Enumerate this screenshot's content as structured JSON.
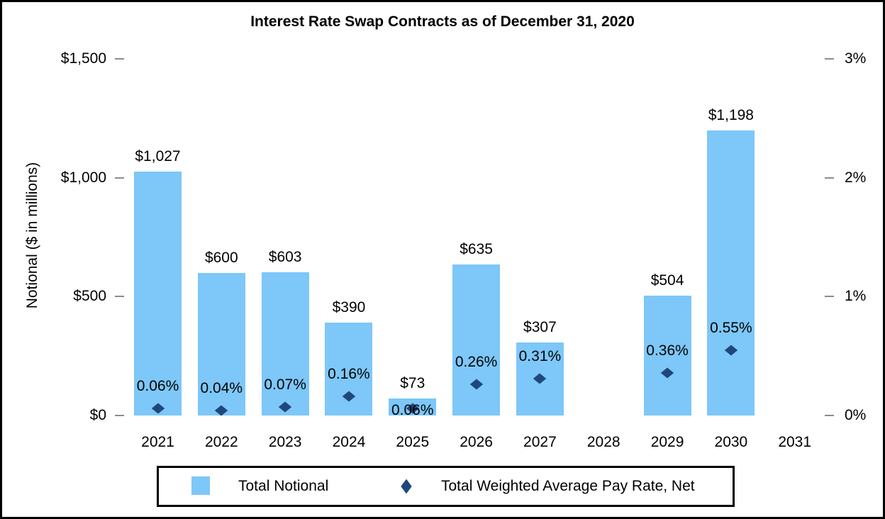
{
  "chart_data": {
    "type": "combo",
    "title": "Interest Rate Swap Contracts as of December 31, 2020",
    "categories": [
      "2021",
      "2022",
      "2023",
      "2024",
      "2025",
      "2026",
      "2027",
      "2028",
      "2029",
      "2030",
      "2031"
    ],
    "grid": "off",
    "legend_position": "bottom",
    "left_axis": {
      "title": "Notional ($ in millions)",
      "min": 0,
      "max": 1500,
      "ticks": [
        {
          "value": 1500,
          "label": "$1,500"
        },
        {
          "value": 1000,
          "label": "$1,000"
        },
        {
          "value": 500,
          "label": "$500"
        },
        {
          "value": 0,
          "label": "$0"
        }
      ]
    },
    "right_axis": {
      "min": 0,
      "max": 3,
      "ticks": [
        {
          "value": 3,
          "label": "3%"
        },
        {
          "value": 2,
          "label": "2%"
        },
        {
          "value": 1,
          "label": "1%"
        },
        {
          "value": 0,
          "label": "0%"
        }
      ]
    },
    "series": [
      {
        "name": "Total Notional",
        "type": "bar",
        "axis": "left",
        "color": "#7DC7F9",
        "values": [
          1027,
          600,
          603,
          390,
          73,
          635,
          307,
          null,
          504,
          1198,
          null
        ],
        "labels": [
          "$1,027",
          "$600",
          "$603",
          "$390",
          "$73",
          "$635",
          "$307",
          null,
          "$504",
          "$1,198",
          null
        ]
      },
      {
        "name": "Total Weighted Average Pay Rate, Net",
        "type": "scatter",
        "marker": "diamond",
        "axis": "right",
        "color": "#1F477B",
        "values": [
          0.06,
          0.04,
          0.07,
          0.16,
          0.06,
          0.26,
          0.31,
          null,
          0.36,
          0.55,
          null
        ],
        "labels": [
          "0.06%",
          "0.04%",
          "0.07%",
          "0.16%",
          "0.06%",
          "0.26%",
          "0.31%",
          null,
          "0.36%",
          "0.55%",
          null
        ],
        "label_positions": [
          "above",
          "above",
          "above",
          "above",
          "center",
          "above",
          "above",
          null,
          "above",
          "above",
          null
        ]
      }
    ]
  },
  "legend": {
    "items": [
      {
        "label": "Total Notional",
        "marker": "square",
        "color": "#7DC7F9"
      },
      {
        "label": "Total Weighted Average Pay Rate, Net",
        "marker": "diamond",
        "color": "#1F477B"
      }
    ]
  }
}
